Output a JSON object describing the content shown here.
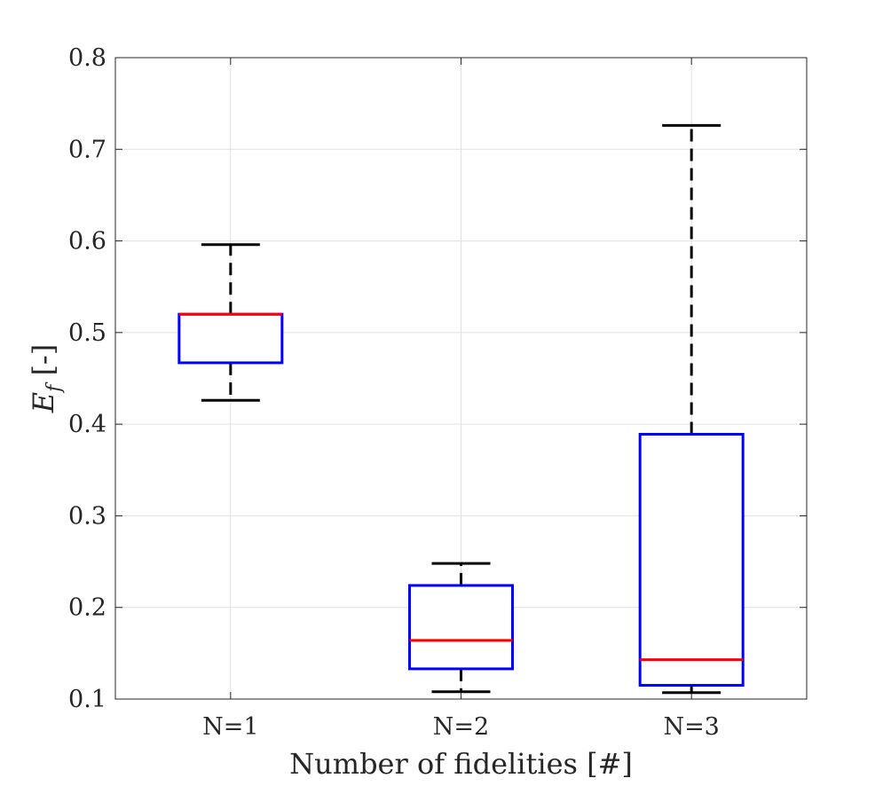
{
  "chart_data": {
    "type": "box",
    "title": "",
    "xlabel": "Number of fidelities [#]",
    "ylabel": {
      "main": "E",
      "subscript": "f",
      "suffix": " [-]"
    },
    "categories": [
      "N=1",
      "N=2",
      "N=3"
    ],
    "ylim": [
      0.1,
      0.8
    ],
    "yticks": [
      0.1,
      0.2,
      0.3,
      0.4,
      0.5,
      0.6,
      0.7,
      0.8
    ],
    "ytick_labels": [
      "0.1",
      "0.2",
      "0.3",
      "0.4",
      "0.5",
      "0.6",
      "0.7",
      "0.8"
    ],
    "grid": true,
    "boxes": [
      {
        "category": "N=1",
        "whisker_low": 0.426,
        "q1": 0.467,
        "median": 0.52,
        "q3": 0.52,
        "whisker_high": 0.596
      },
      {
        "category": "N=2",
        "whisker_low": 0.108,
        "q1": 0.133,
        "median": 0.164,
        "q3": 0.224,
        "whisker_high": 0.248
      },
      {
        "category": "N=3",
        "whisker_low": 0.107,
        "q1": 0.115,
        "median": 0.143,
        "q3": 0.389,
        "whisker_high": 0.726
      }
    ],
    "colors": {
      "box": "#0000ff",
      "median": "#ff0000",
      "whisker": "#000000",
      "grid": "#e0e0e0",
      "axis": "#262626"
    }
  }
}
